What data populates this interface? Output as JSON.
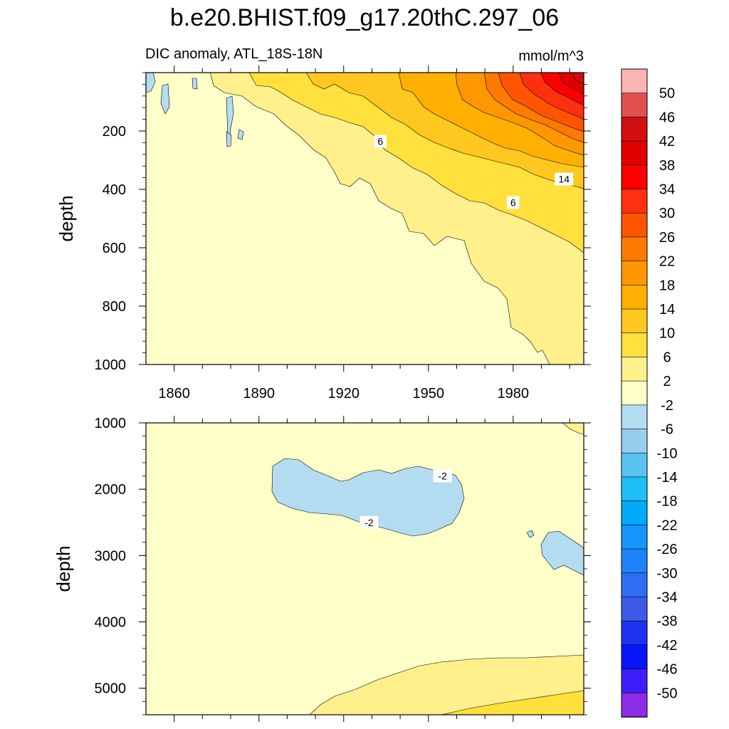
{
  "title": "b.e20.BHIST.f09_g17.20thC.297_06",
  "left_string": "DIC anomaly, ATL_18S-18N",
  "right_string": "mmol/m^3",
  "colors": {
    "background": "#ffffff",
    "contour_line": "#000000"
  },
  "chart_data": [
    {
      "type": "contour",
      "panel": "top",
      "xlabel": "",
      "ylabel": "depth",
      "x_range": [
        1850,
        2005
      ],
      "y_range": [
        0,
        1000
      ],
      "y_reversed": true,
      "x_ticks": [
        1860,
        1890,
        1920,
        1950,
        1980
      ],
      "x_tick_labels": [
        "1860",
        "1890",
        "1920",
        "1950",
        "1980"
      ],
      "y_ticks": [
        200,
        400,
        600,
        800,
        1000
      ],
      "y_tick_labels": [
        "200",
        "400",
        "600",
        "800",
        "1000"
      ],
      "contour_labels": [
        {
          "text": "6",
          "x": 1933,
          "y": 235
        },
        {
          "text": "14",
          "x": 1998,
          "y": 365
        },
        {
          "text": "6",
          "x": 1980,
          "y": 445
        }
      ]
    },
    {
      "type": "contour",
      "panel": "bottom",
      "xlabel": "",
      "ylabel": "depth",
      "x_range": [
        1850,
        2005
      ],
      "y_range": [
        1000,
        5400
      ],
      "y_reversed": true,
      "y_ticks": [
        1000,
        2000,
        3000,
        4000,
        5000
      ],
      "y_tick_labels": [
        "1000",
        "2000",
        "3000",
        "4000",
        "5000"
      ],
      "contour_labels": [
        {
          "text": "-2",
          "x": 1955,
          "y": 1800
        },
        {
          "text": "-2",
          "x": 1929,
          "y": 2500
        }
      ]
    }
  ],
  "colorbar": {
    "labels": [
      "50",
      "46",
      "42",
      "38",
      "34",
      "30",
      "26",
      "22",
      "18",
      "14",
      "10",
      "6",
      "2",
      "-2",
      "-6",
      "-10",
      "-14",
      "-18",
      "-22",
      "-26",
      "-30",
      "-34",
      "-38",
      "-42",
      "-46",
      "-50"
    ],
    "colors": [
      "#fbb4b4",
      "#e05050",
      "#d01010",
      "#e00000",
      "#ff0000",
      "#ff3010",
      "#ff5500",
      "#ff7a00",
      "#ff9800",
      "#ffb000",
      "#ffc820",
      "#ffe03c",
      "#fff08c",
      "#ffffc8",
      "#b4dcf0",
      "#96cdee",
      "#5ac3f2",
      "#1ebef6",
      "#00aaf8",
      "#1496fa",
      "#1e82fa",
      "#2d6ef5",
      "#3c5ae6",
      "#1e32f0",
      "#0a14fa",
      "#3c1efa",
      "#8c2ce6"
    ]
  }
}
